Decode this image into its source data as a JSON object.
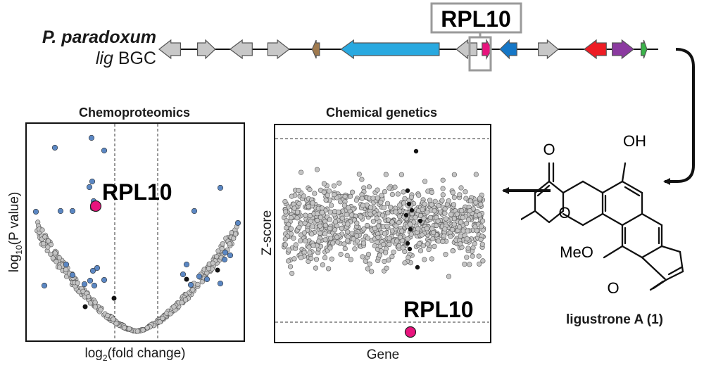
{
  "organism": {
    "species": "P. paradoxum",
    "gene_prefix": "lig",
    "cluster": "BGC"
  },
  "cluster_target_label": "RPL10",
  "genes": [
    {
      "x1": 0.0,
      "x2": 2.9,
      "dir": "left",
      "color": "#c8c8c8"
    },
    {
      "x1": 5.2,
      "x2": 7.6,
      "dir": "right",
      "color": "#c8c8c8"
    },
    {
      "x1": 9.6,
      "x2": 12.6,
      "dir": "left",
      "color": "#c8c8c8"
    },
    {
      "x1": 14.7,
      "x2": 17.6,
      "dir": "right",
      "color": "#c8c8c8"
    },
    {
      "x1": 20.7,
      "x2": 21.7,
      "dir": "left",
      "color": "#a07a4e"
    },
    {
      "x1": 24.6,
      "x2": 37.9,
      "dir": "left",
      "color": "#29a9e0"
    },
    {
      "x1": 40.2,
      "x2": 43.0,
      "dir": "left",
      "color": "#c8c8c8"
    },
    {
      "x1": 43.7,
      "x2": 45.0,
      "dir": "right",
      "color": "#e8137d"
    },
    {
      "x1": 46.1,
      "x2": 48.4,
      "dir": "left",
      "color": "#1577c7"
    },
    {
      "x1": 51.3,
      "x2": 54.0,
      "dir": "right",
      "color": "#c8c8c8"
    },
    {
      "x1": 57.5,
      "x2": 60.5,
      "dir": "left",
      "color": "#ee1c24"
    },
    {
      "x1": 61.3,
      "x2": 64.2,
      "dir": "right",
      "color": "#8b3aa0"
    },
    {
      "x1": 65.2,
      "x2": 66.0,
      "dir": "right",
      "color": "#3bb34a"
    }
  ],
  "chemoproteomics": {
    "title": "Chemoproteomics",
    "xlabel_pre": "log",
    "xlabel_sub": "2",
    "xlabel_post": "(fold change)",
    "ylabel_pre": "log",
    "ylabel_sub": "10",
    "ylabel_post": "(P value)",
    "highlight_label": "RPL10"
  },
  "chemical_genetics": {
    "title": "Chemical genetics",
    "xlabel": "Gene",
    "ylabel": "Z-score",
    "highlight_label": "RPL10"
  },
  "compound": {
    "name": "ligustrone A (1)",
    "atoms": {
      "o1": "O",
      "oh": "OH",
      "o_ring": "O",
      "ome": "MeO",
      "o2": "O"
    }
  },
  "colors": {
    "target": "#e8137d",
    "significant": "#5b87c3",
    "background": "#c4c4c4",
    "black": "#111111"
  }
}
